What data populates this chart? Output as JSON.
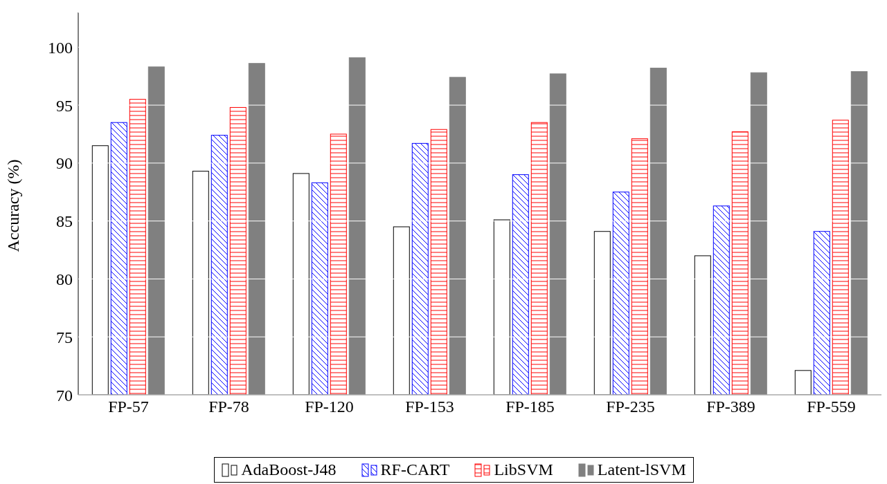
{
  "chart_data": {
    "type": "bar",
    "ylabel": "Accuracy (%)",
    "categories": [
      "FP-57",
      "FP-78",
      "FP-120",
      "FP-153",
      "FP-185",
      "FP-235",
      "FP-389",
      "FP-559"
    ],
    "series": [
      {
        "name": "AdaBoost-J48",
        "color": "#000000",
        "values": [
          91.5,
          89.3,
          89.1,
          84.5,
          85.1,
          84.1,
          82.0,
          72.1
        ]
      },
      {
        "name": "RF-CART",
        "color": "#0000ff",
        "values": [
          93.5,
          92.4,
          88.3,
          91.7,
          89.0,
          87.5,
          86.3,
          84.1
        ]
      },
      {
        "name": "LibSVM",
        "color": "#ff0000",
        "values": [
          95.5,
          94.8,
          92.5,
          92.9,
          93.5,
          92.1,
          92.7,
          93.7
        ]
      },
      {
        "name": "Latent-lSVM",
        "color": "#808080",
        "values": [
          98.3,
          98.6,
          99.1,
          97.4,
          97.7,
          98.2,
          97.8,
          97.9
        ]
      }
    ],
    "ylim": [
      70,
      103
    ],
    "yticks": [
      70,
      75,
      80,
      85,
      90,
      95,
      100
    ],
    "grid": "y",
    "legend": "bottom"
  }
}
